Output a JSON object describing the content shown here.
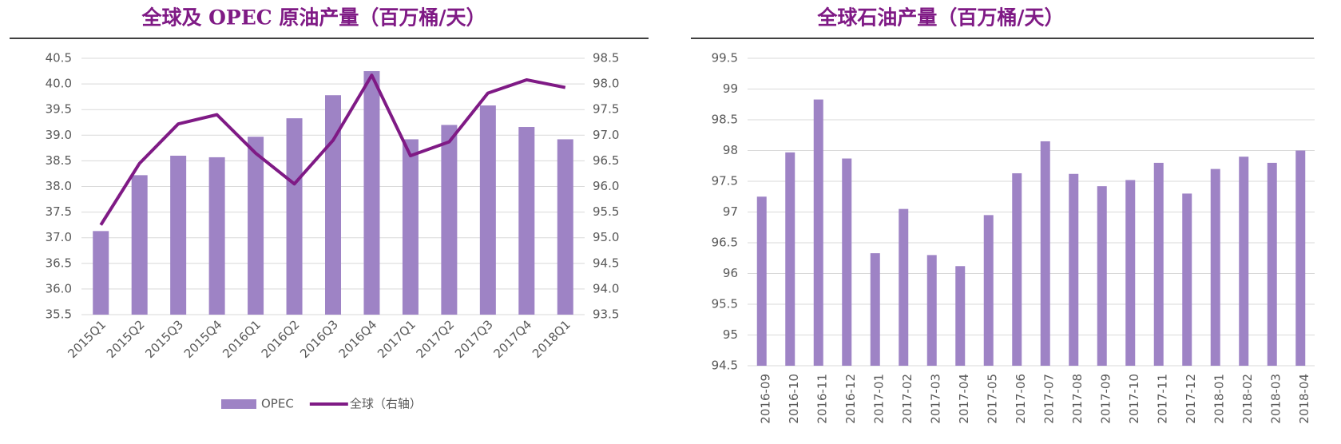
{
  "chart_data": [
    {
      "type": "bar",
      "title": "全球及 OPEC 原油产量（百万桶/天）",
      "categories": [
        "2015Q1",
        "2015Q2",
        "2015Q3",
        "2015Q4",
        "2016Q1",
        "2016Q2",
        "2016Q3",
        "2016Q4",
        "2017Q1",
        "2017Q2",
        "2017Q3",
        "2017Q4",
        "2018Q1"
      ],
      "series": [
        {
          "name": "OPEC",
          "type": "bar",
          "color": "#9e83c5",
          "values": [
            37.13,
            38.22,
            38.6,
            38.57,
            38.97,
            39.33,
            39.78,
            40.25,
            38.92,
            39.2,
            39.58,
            39.16,
            38.92
          ]
        },
        {
          "name": "全球（右轴）",
          "type": "line",
          "axis": "y2",
          "color": "#7f1a85",
          "values": [
            95.25,
            96.45,
            97.22,
            97.4,
            96.65,
            96.05,
            96.9,
            98.17,
            96.6,
            96.87,
            97.82,
            98.08,
            97.93
          ]
        }
      ],
      "ylim": [
        35.5,
        40.5
      ],
      "yticks": [
        35.5,
        {
          "value": 36,
          "label": "36.0"
        },
        36.5,
        {
          "value": 37,
          "label": "37.0"
        },
        37.5,
        {
          "value": 38,
          "label": "38.0"
        },
        38.5,
        {
          "value": 39,
          "label": "39.0"
        },
        39.5,
        {
          "value": 40,
          "label": "40.0"
        },
        40.5
      ],
      "y2lim": [
        93.5,
        98.5
      ],
      "y2ticks": [
        93.5,
        {
          "value": 94,
          "label": "94.0"
        },
        94.5,
        {
          "value": 95,
          "label": "95.0"
        },
        95.5,
        {
          "value": 96,
          "label": "96.0"
        },
        96.5,
        {
          "value": 97,
          "label": "97.0"
        },
        97.5,
        {
          "value": 98,
          "label": "98.0"
        },
        98.5
      ],
      "grid": true,
      "legend": "bottom"
    },
    {
      "type": "bar",
      "title": "全球石油产量（百万桶/天）",
      "categories": [
        "2016-09",
        "2016-10",
        "2016-11",
        "2016-12",
        "2017-01",
        "2017-02",
        "2017-03",
        "2017-04",
        "2017-05",
        "2017-06",
        "2017-07",
        "2017-08",
        "2017-09",
        "2017-10",
        "2017-11",
        "2017-12",
        "2018-01",
        "2018-02",
        "2018-03",
        "2018-04"
      ],
      "values": [
        97.25,
        97.97,
        98.83,
        97.87,
        96.33,
        97.05,
        96.3,
        96.12,
        96.95,
        97.63,
        98.15,
        97.62,
        97.42,
        97.52,
        97.8,
        97.3,
        97.7,
        97.9,
        97.8,
        98.0
      ],
      "color": "#9e83c5",
      "ylim": [
        94.5,
        99.5
      ],
      "yticks": [
        94.5,
        95,
        95.5,
        96,
        96.5,
        97,
        97.5,
        98,
        98.5,
        99,
        99.5
      ],
      "grid": true
    }
  ]
}
